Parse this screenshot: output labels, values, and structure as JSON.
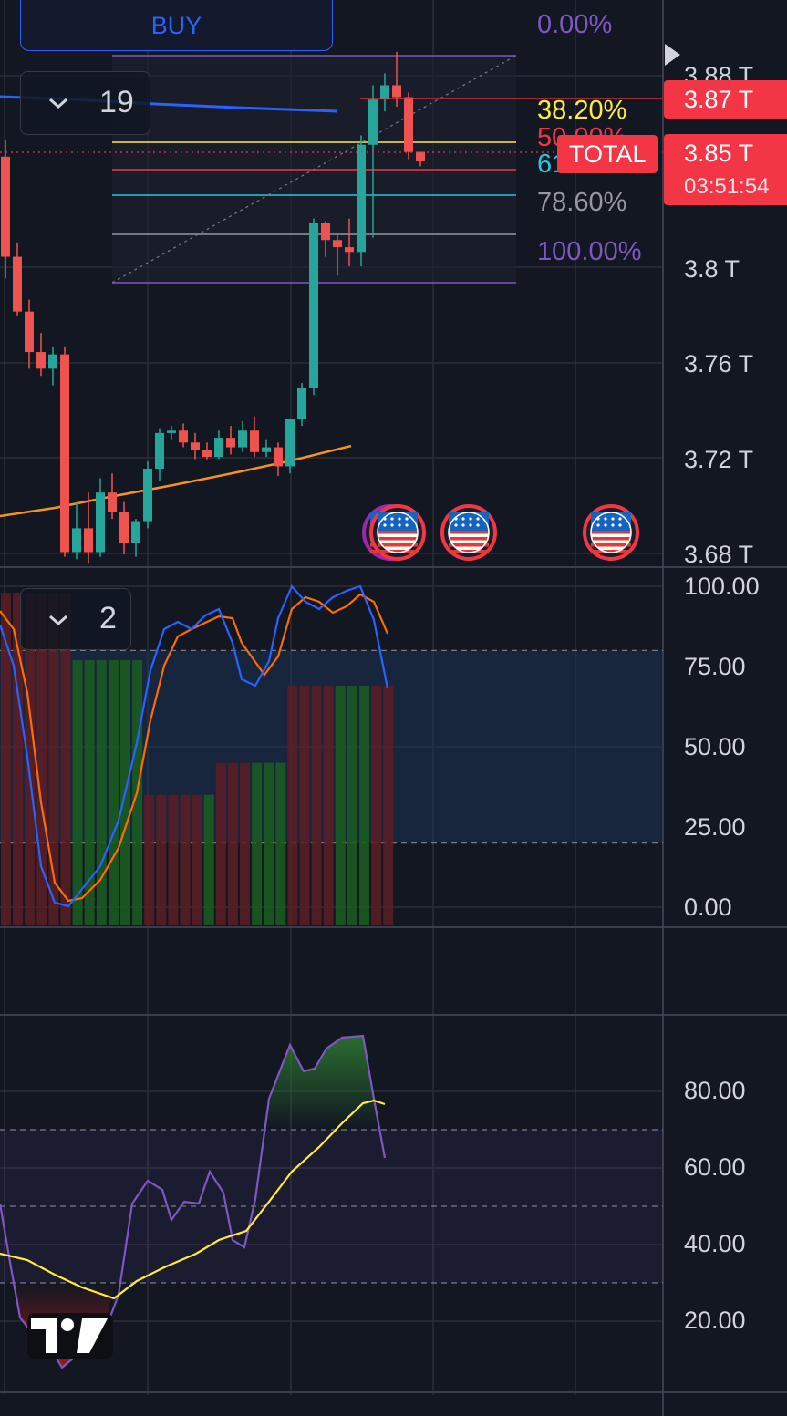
{
  "buy_button": {
    "label": "BUY"
  },
  "indicator_toggles": [
    {
      "count": "19"
    },
    {
      "count": "2"
    }
  ],
  "price_axis": {
    "labels": [
      "3.88 T",
      "3.8 T",
      "3.76 T",
      "3.72 T",
      "3.68 T"
    ],
    "current_price": "3.87 T",
    "total_label": "TOTAL",
    "total_value": "3.85 T",
    "countdown": "03:51:54"
  },
  "fibonacci": {
    "levels": [
      {
        "label": "0.00%",
        "color": "#7e57c2"
      },
      {
        "label": "38.20%",
        "color": "#ffeb3b"
      },
      {
        "label": "50.00%",
        "color": "#f23645"
      },
      {
        "label": "61.80%",
        "color": "#26c6da"
      },
      {
        "label": "78.60%",
        "color": "#9598a1"
      },
      {
        "label": "100.00%",
        "color": "#7e57c2"
      }
    ]
  },
  "stoch_axis": {
    "labels": [
      "100.00",
      "75.00",
      "50.00",
      "25.00",
      "0.00"
    ]
  },
  "rsi_axis": {
    "labels": [
      "80.00",
      "60.00",
      "40.00",
      "20.00"
    ]
  },
  "colors": {
    "background": "#121722",
    "up": "#26a69a",
    "down": "#ef5350",
    "ma_orange": "#f7931a",
    "ma_blue": "#2962ff",
    "stoch_k": "#2962ff",
    "stoch_d": "#ff6d00",
    "rsi": "#7e57c2",
    "rsi_ma": "#ffeb3b"
  },
  "event_icons": [
    "us-flag-icon",
    "us-flag-icon",
    "us-flag-icon",
    "us-flag-icon"
  ],
  "logo": "tradingview-logo"
}
